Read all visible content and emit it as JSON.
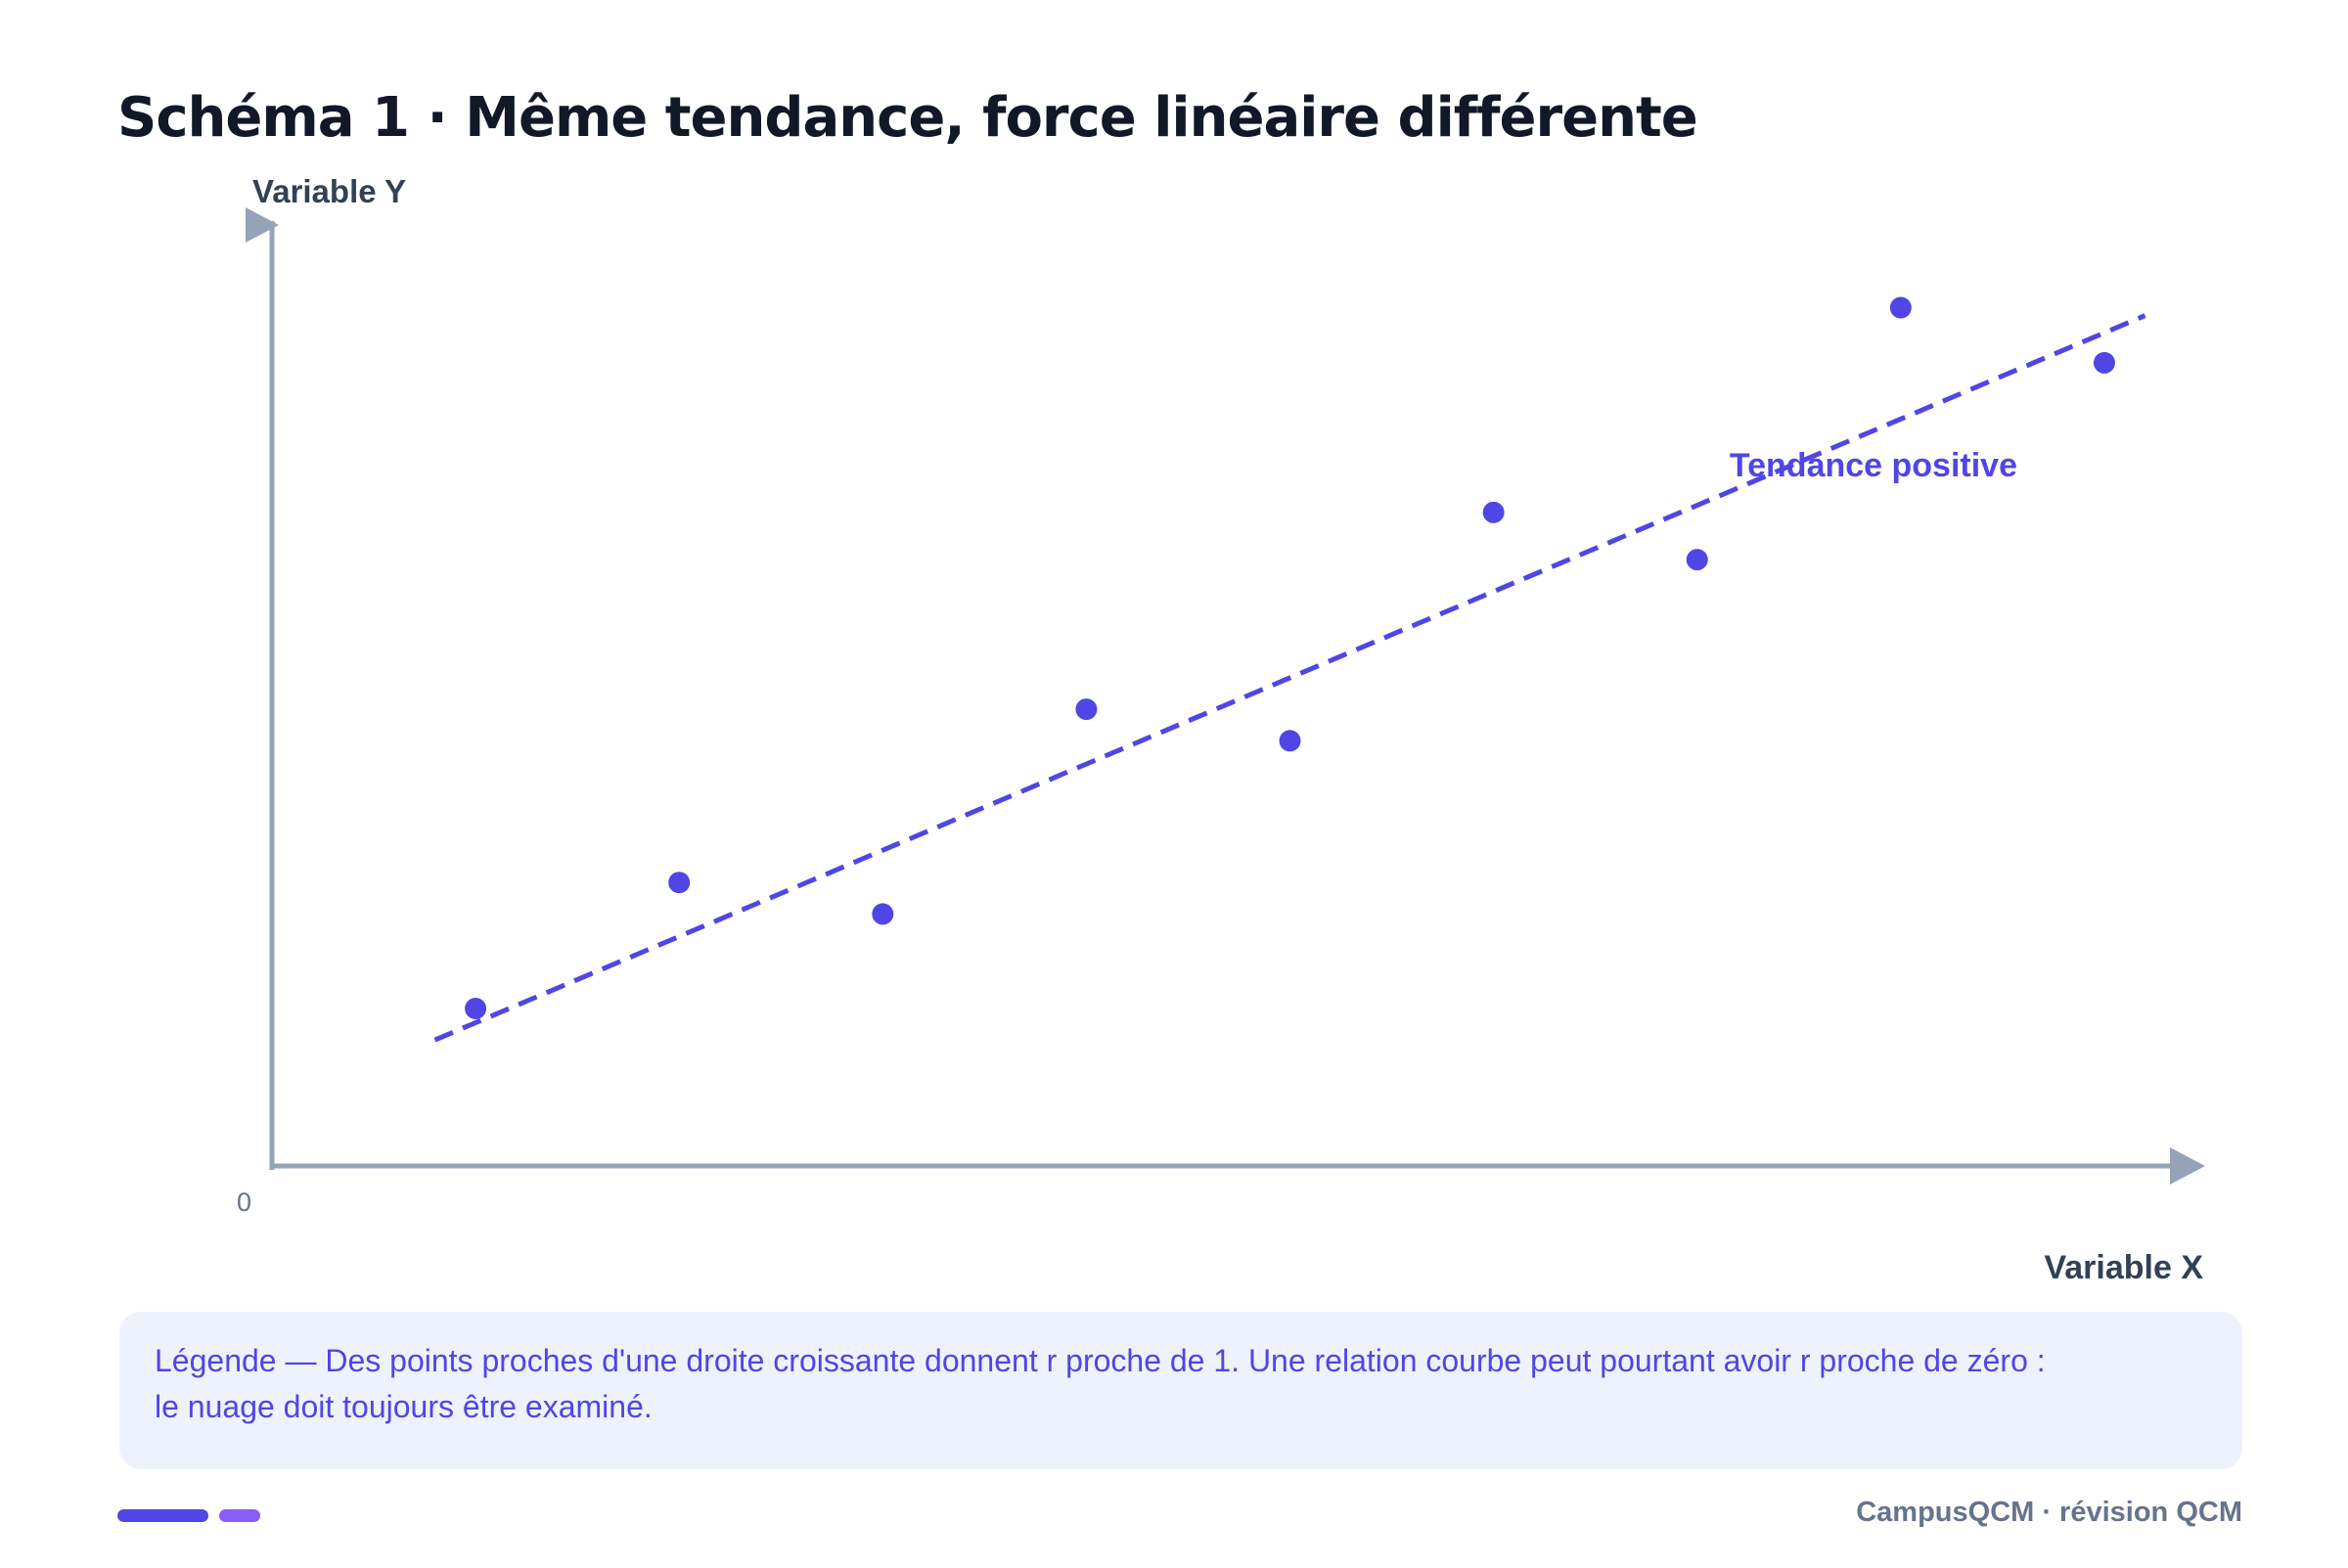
{
  "title": "Schéma 1 · Même tendance, force linéaire différente",
  "caption": "Légende — Des points proches d'une droite croissante donnent r proche de 1. Une relation courbe peut pourtant avoir r proche de zéro : le nuage doit toujours être examiné.",
  "footer": "CampusQCM · révision QCM",
  "colors": {
    "accent": "#4f46e5",
    "accent_secondary": "#8b5cf6",
    "axis": "#94a3b8",
    "title": "#111827",
    "muted": "#64748b",
    "caption_bg": "#eef2fd"
  },
  "chart_data": {
    "type": "scatter",
    "title": "Schéma 1 · Même tendance, force linéaire différente",
    "xlabel": "Variable X",
    "ylabel": "Variable Y",
    "origin_label": "0",
    "x": [
      1,
      2,
      3,
      4,
      5,
      6,
      7,
      8,
      9
    ],
    "y": [
      1.0,
      1.8,
      1.6,
      2.9,
      2.7,
      4.15,
      3.85,
      5.45,
      5.1
    ],
    "xlim": [
      0,
      9.5
    ],
    "ylim": [
      0,
      6
    ],
    "trend_line": {
      "label": "Tendance positive",
      "style": "dashed",
      "x": [
        0.8,
        9.2
      ],
      "y": [
        0.8,
        5.4
      ]
    },
    "grid": false,
    "legend": "none"
  }
}
